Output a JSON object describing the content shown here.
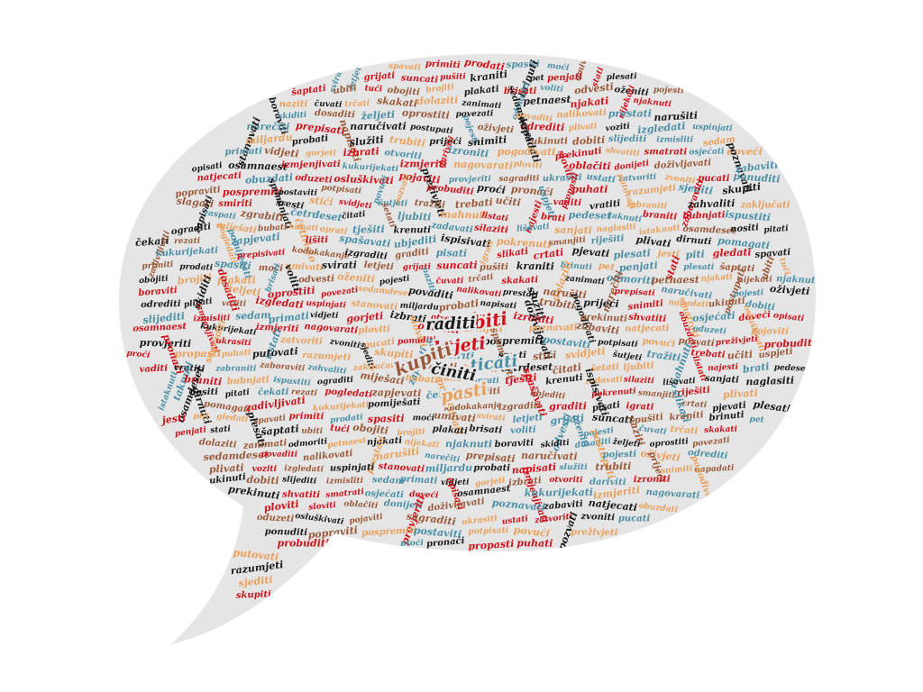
{
  "palette": {
    "background": "#ffffff",
    "bubble_fill": "#e5e5e5",
    "colors": [
      "#1a1a1a",
      "#d0121b",
      "#4a8fa6",
      "#e8a05c",
      "#9a5a3a"
    ]
  },
  "featured_words": [
    {
      "text": "biti",
      "color": "#d0121b"
    },
    {
      "text": "raditi",
      "color": "#1a1a1a"
    },
    {
      "text": "htjeti",
      "color": "#d0121b"
    },
    {
      "text": "kupiti",
      "color": "#9a5a3a"
    },
    {
      "text": "ticati",
      "color": "#4a8fa6"
    },
    {
      "text": "činiti",
      "color": "#1a1a1a"
    },
    {
      "text": "pasti",
      "color": "#e8a05c"
    }
  ],
  "words": [
    "spavati",
    "primiti",
    "prodati",
    "spasiti",
    "moći",
    "umivati",
    "svirati",
    "letjeti",
    "grijati",
    "suncati",
    "pušiti",
    "kraniti",
    "brinuti",
    "pet",
    "penjati",
    "stati",
    "plesati",
    "šaptati",
    "ubiti",
    "tući",
    "obojiti",
    "brojiti",
    "plakati",
    "brisati",
    "voliti",
    "odvesti",
    "oženiti",
    "pojesti",
    "naziti",
    "čuvati",
    "trčati",
    "skakati",
    "dolaziti",
    "zanimati",
    "odmoriti",
    "petnaest",
    "njakati",
    "nijekati",
    "njaknuti",
    "boraviti",
    "skiditi",
    "dosaditi",
    "željeti",
    "oprostiti",
    "povezati",
    "sedamdeset",
    "povaditi",
    "nalikovati",
    "prestati",
    "narušiti",
    "narečiti",
    "prepisati",
    "naručivati",
    "postupati",
    "pojesti",
    "oživjeti",
    "odrediti",
    "plivati",
    "voziti",
    "izgledati",
    "uspinjati",
    "stanovati",
    "miljardu",
    "probati",
    "napisati",
    "služiti",
    "trubiti",
    "prijeći",
    "snimiti",
    "napadati",
    "ukinuti",
    "dobiti",
    "slijediti",
    "izmisliti",
    "sedam",
    "primati",
    "vidjeti",
    "gorjeti",
    "izbrati",
    "otvoriti",
    "dariviti",
    "izroniti",
    "pogođivati",
    "prekinuti",
    "shvatiti",
    "smatrati",
    "osjećati",
    "doveći",
    "opisati",
    "osamnaest",
    "izmjenjivati",
    "kukurijekati",
    "izmjeriti",
    "nagovarati",
    "ploviti",
    "sloviti",
    "oblačiti",
    "donijeti",
    "doživljavati",
    "poznavati",
    "zabaviti",
    "natjecati",
    "obuzdati",
    "oduzeti",
    "osluškivati",
    "pojaviti",
    "provjeriti",
    "sagraditi",
    "ukrasiti",
    "ustati",
    "zatvoriti",
    "zvoniti",
    "pucati",
    "ponuditi",
    "popraviti",
    "pospremiti",
    "postaviti",
    "potpisati",
    "povući",
    "pozvati",
    "preživjeti",
    "probuditi",
    "proći",
    "pronaći",
    "propasti",
    "puhati",
    "putovati",
    "razumjeti",
    "sjediti",
    "skupiti",
    "slagati",
    "smiriti",
    "spominjati",
    "sresti",
    "stići",
    "svidjeti",
    "šutjeti",
    "tražiti",
    "trebati",
    "učiti",
    "uspjeti",
    "vaditi",
    "vratiti",
    "zabraniti",
    "zaboraviti",
    "zahvaliti",
    "zaključati",
    "zapisati",
    "zaspati",
    "zgrabiti",
    "četrdeset",
    "čitati",
    "šetati",
    "ljubiti",
    "mahnuti",
    "listati",
    "najesti",
    "brati",
    "pedeset",
    "taknuti",
    "braniti",
    "bubnjati",
    "ispustiti",
    "ograditi",
    "miješati",
    "bubati",
    "kuhati",
    "oprati",
    "tješiti",
    "krenuti",
    "zadavati",
    "silaziti",
    "lišavati",
    "sanjati",
    "naglasiti",
    "istaknuti",
    "osamdeset",
    "nositi",
    "pitati",
    "čekati",
    "rezati",
    "pogledati",
    "zapjevati",
    "četiristo",
    "lišiti",
    "spašavati",
    "ubjediti",
    "ispisivati",
    "pokrenuti",
    "smanjiti",
    "riješiti",
    "plivati",
    "dirnuti",
    "pomagati",
    "zadivljivati",
    "kukurijekati",
    "pomiješati",
    "prepisivati",
    "kodokakanje",
    "izgraditi",
    "graditi",
    "pisati",
    "igrati",
    "slikati",
    "crtati",
    "pjevati",
    "plesati",
    "jesti",
    "piti",
    "gledati"
  ]
}
